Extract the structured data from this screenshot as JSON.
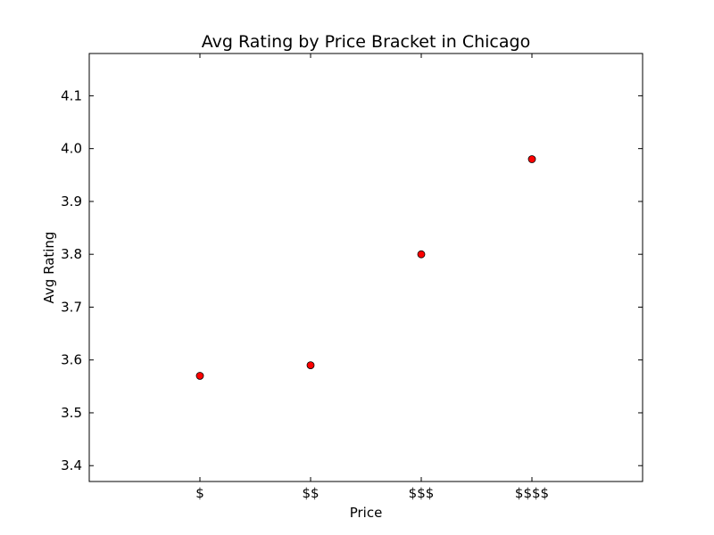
{
  "chart_data": {
    "type": "scatter",
    "title": "Avg Rating by Price Bracket in Chicago",
    "xlabel": "Price",
    "ylabel": "Avg Rating",
    "categories": [
      "$",
      "$$",
      "$$$",
      "$$$$"
    ],
    "series": [
      {
        "values": [
          3.57,
          3.59,
          3.8,
          3.98
        ],
        "color": "#ff0000",
        "edge_color": "#000000"
      }
    ],
    "xlim": [
      -1,
      4
    ],
    "ylim": [
      3.37,
      4.18
    ],
    "yticks": [
      "3.4",
      "3.5",
      "3.6",
      "3.7",
      "3.8",
      "3.9",
      "4.0",
      "4.1"
    ],
    "grid": false,
    "legend": "none"
  }
}
